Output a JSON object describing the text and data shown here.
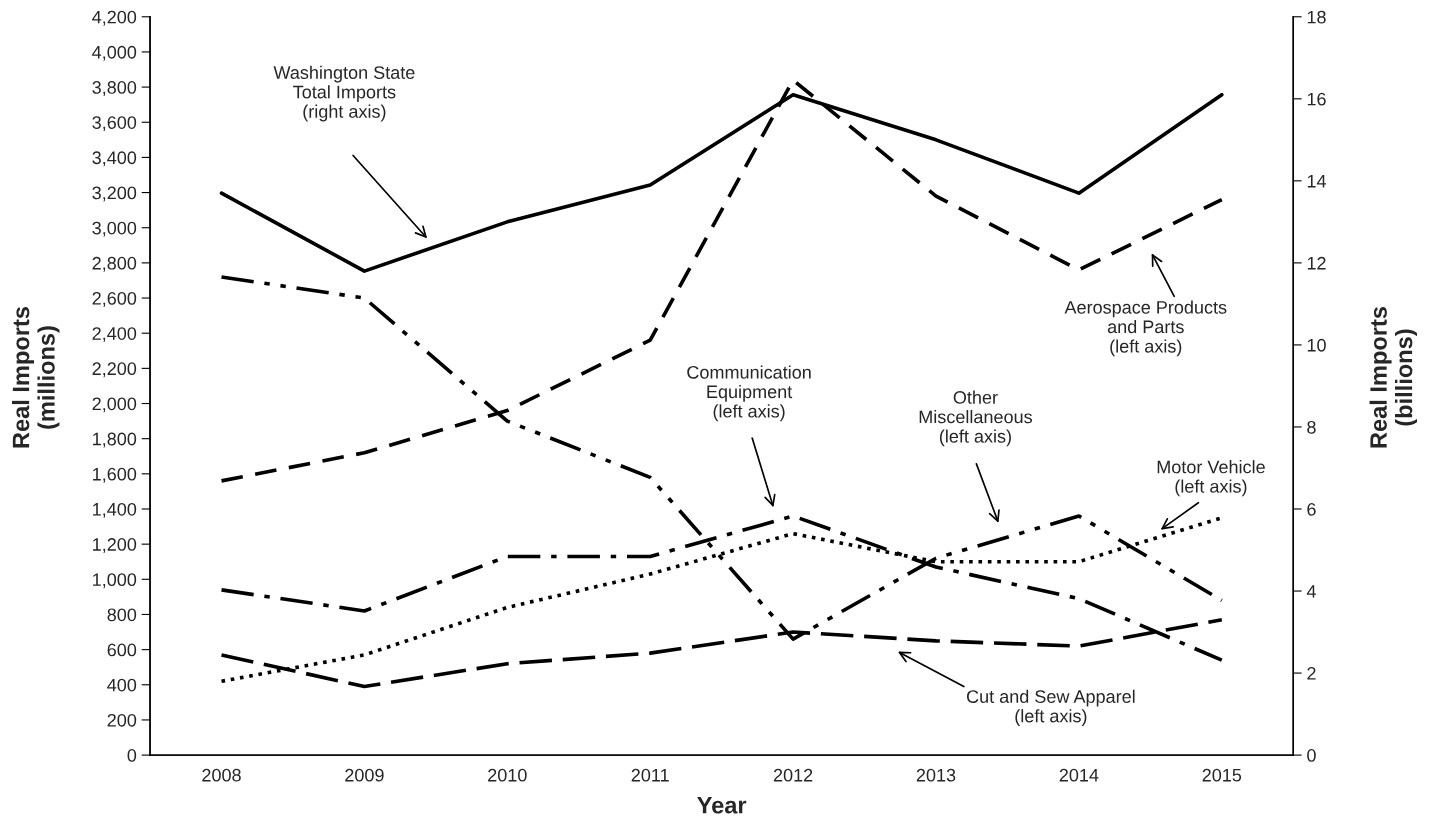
{
  "chart_data": {
    "type": "line",
    "xlabel": "Year",
    "ylabel": "Real Imports\n(millions)",
    "y2label": "Real Imports\n(billions)",
    "x": [
      2008,
      2009,
      2010,
      2011,
      2012,
      2013,
      2014,
      2015
    ],
    "xlim": [
      2007.5,
      2015.5
    ],
    "xticks": [
      2008,
      2009,
      2010,
      2011,
      2012,
      2013,
      2014,
      2015
    ],
    "ylim": [
      0,
      4200
    ],
    "yticks": [
      {
        "value": 0,
        "label": "0"
      },
      {
        "value": 200,
        "label": "200"
      },
      {
        "value": 400,
        "label": "400"
      },
      {
        "value": 600,
        "label": "600"
      },
      {
        "value": 800,
        "label": "800"
      },
      {
        "value": 1000,
        "label": "1,000"
      },
      {
        "value": 1200,
        "label": "1,200"
      },
      {
        "value": 1400,
        "label": "1,400"
      },
      {
        "value": 1600,
        "label": "1,600"
      },
      {
        "value": 1800,
        "label": "1,800"
      },
      {
        "value": 2000,
        "label": "2,000"
      },
      {
        "value": 2200,
        "label": "2,200"
      },
      {
        "value": 2400,
        "label": "2,400"
      },
      {
        "value": 2600,
        "label": "2,600"
      },
      {
        "value": 2800,
        "label": "2,800"
      },
      {
        "value": 3000,
        "label": "3,000"
      },
      {
        "value": 3200,
        "label": "3,200"
      },
      {
        "value": 3400,
        "label": "3,400"
      },
      {
        "value": 3600,
        "label": "3,600"
      },
      {
        "value": 3800,
        "label": "3,800"
      },
      {
        "value": 4000,
        "label": "4,000"
      },
      {
        "value": 4200,
        "label": "4,200"
      }
    ],
    "y2lim": [
      0,
      18
    ],
    "y2ticks": [
      0,
      2,
      4,
      6,
      8,
      10,
      12,
      14,
      16,
      18
    ],
    "grid": false,
    "legend": false,
    "marker": "none",
    "series": [
      {
        "color": "#000000",
        "line_style": "solid",
        "axis": "y2",
        "values": [
          13.7,
          11.8,
          13.0,
          13.9,
          16.1,
          15.0,
          13.7,
          16.1
        ]
      },
      {
        "color": "#000000",
        "line_style": "dashed",
        "values": [
          1560,
          1720,
          1960,
          2360,
          3840,
          3180,
          2760,
          3160
        ]
      },
      {
        "color": "#000000",
        "line_style": "dashdotdot",
        "values": [
          2720,
          2600,
          1900,
          1580,
          660,
          1120,
          1360,
          880
        ]
      },
      {
        "color": "#000000",
        "line_style": "dashdot",
        "values": [
          940,
          820,
          1130,
          1130,
          1360,
          1070,
          890,
          540
        ]
      },
      {
        "color": "#000000",
        "line_style": "dotted",
        "values": [
          420,
          570,
          840,
          1030,
          1260,
          1100,
          1100,
          1350
        ]
      },
      {
        "color": "#000000",
        "line_style": "longdash",
        "values": [
          570,
          390,
          520,
          580,
          700,
          650,
          620,
          770
        ]
      }
    ],
    "annotations": [
      "Washington State\nTotal Imports\n(right axis)",
      "Aerospace Products\nand Parts\n(left axis)",
      "Communication\nEquipment\n(left axis)",
      "Other\nMiscellaneous\n(left axis)",
      "Motor Vehicle\n(left axis)",
      "Cut and Sew Apparel\n(left axis)"
    ]
  }
}
